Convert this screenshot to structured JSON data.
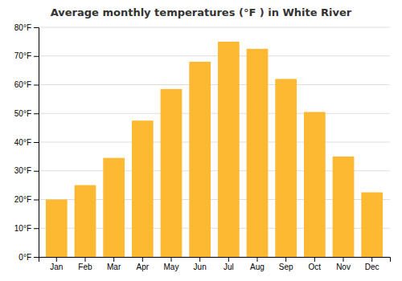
{
  "chart_data": {
    "type": "bar",
    "title": "Average monthly temperatures (°F ) in White River",
    "categories": [
      "Jan",
      "Feb",
      "Mar",
      "Apr",
      "May",
      "Jun",
      "Jul",
      "Aug",
      "Sep",
      "Oct",
      "Nov",
      "Dec"
    ],
    "values": [
      20,
      25,
      34.5,
      47.5,
      58.5,
      68,
      75,
      72.5,
      62,
      50.5,
      35,
      22.5
    ],
    "color": "#FDB932",
    "ylim": [
      0,
      80
    ],
    "yticks": [
      {
        "value": 0,
        "label": "0°F"
      },
      {
        "value": 10,
        "label": "10°F"
      },
      {
        "value": 20,
        "label": "20°F"
      },
      {
        "value": 30,
        "label": "30°F"
      },
      {
        "value": 40,
        "label": "40°F"
      },
      {
        "value": 50,
        "label": "50°F"
      },
      {
        "value": 60,
        "label": "60°F"
      },
      {
        "value": 70,
        "label": "70°F"
      },
      {
        "value": 80,
        "label": "80°F"
      }
    ],
    "grid": true
  }
}
